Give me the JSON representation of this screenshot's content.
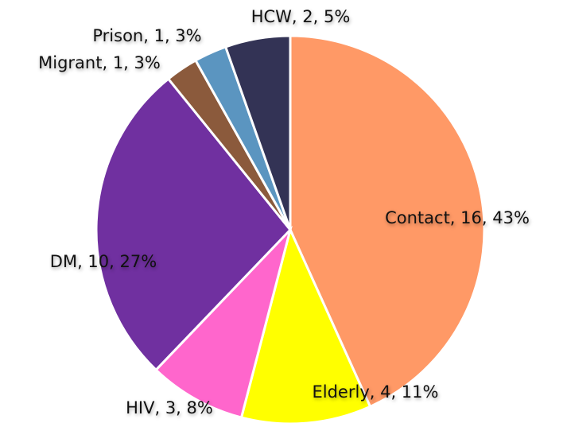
{
  "chart_data": {
    "type": "pie",
    "values": [
      16,
      4,
      3,
      10,
      1,
      1,
      2
    ],
    "value_labels": [
      "Contact, 16, 43%",
      "Elderly, 4, 11%",
      "HIV, 3, 8%",
      "DM, 10, 27%",
      "Migrant, 1, 3%",
      "Prison, 1, 3%",
      "HCW, 2, 5%"
    ],
    "colors": [
      "#ff9966",
      "#ffff00",
      "#ff66cc",
      "#7030a0",
      "#8b5a3c",
      "#5b95c0",
      "#333355"
    ]
  }
}
